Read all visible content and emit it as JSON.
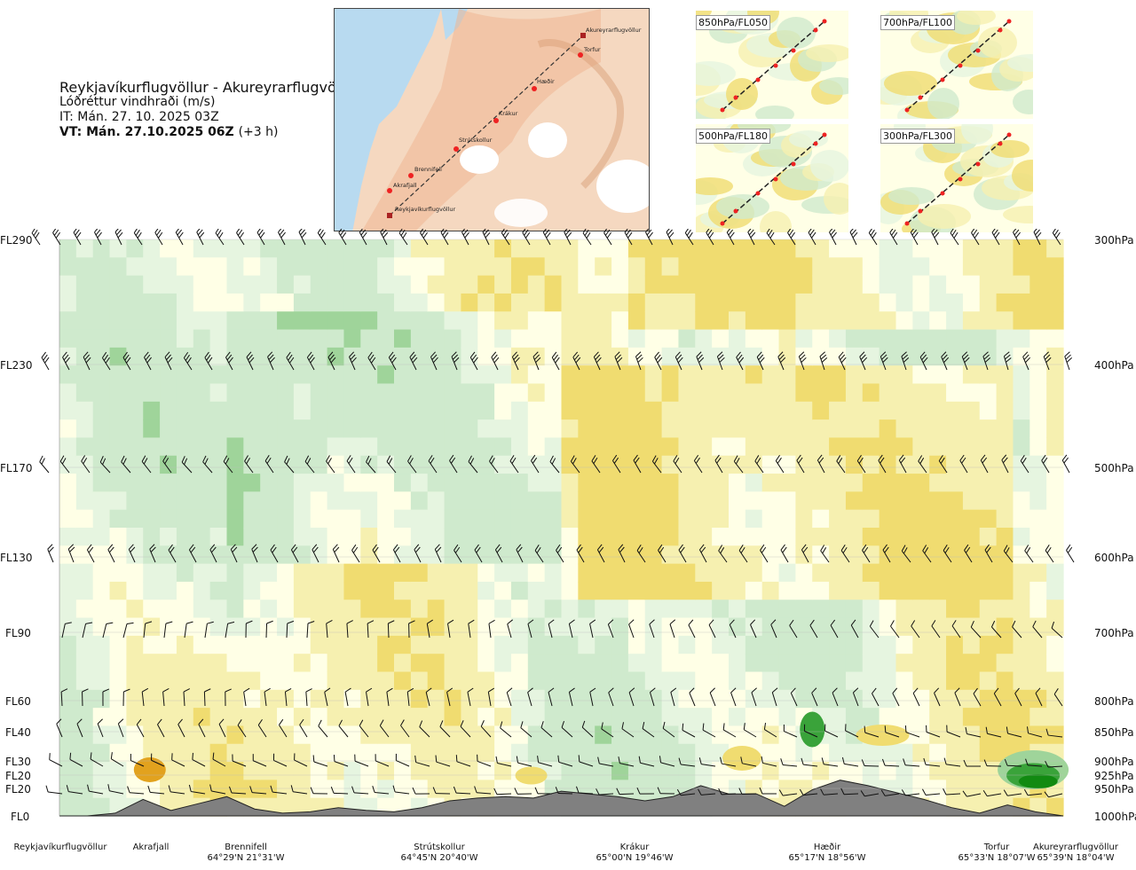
{
  "header": {
    "route": "Reykjavíkurflugvöllur - Akureyrarflugvöllur",
    "variable": "Lóðréttur vindhraði (m/s)",
    "issue_time": "IT: Mán. 27. 10. 2025 03Z",
    "valid_time": "VT: Mán. 27.10.2025 06Z",
    "lead": "(+3 h)"
  },
  "route_map": {
    "waypoints": [
      "Reykjavíkurflugvöllur",
      "Akrafjall",
      "Brennifell",
      "Strútskollur",
      "Krákur",
      "Hæðir",
      "Torfur",
      "Akureyrarflugvöllur"
    ]
  },
  "level_maps": [
    "850hPa/FL050",
    "700hPa/FL100",
    "500hPa/FL180",
    "300hPa/FL300"
  ],
  "levels_left": [
    "FL290",
    "FL230",
    "FL170",
    "FL130",
    "FL90",
    "FL60",
    "FL40",
    "FL30",
    "FL20",
    "FL20",
    "FL0"
  ],
  "levels_right": [
    "300hPa",
    "400hPa",
    "500hPa",
    "600hPa",
    "700hPa",
    "800hPa",
    "850hPa",
    "900hPa",
    "925hPa",
    "950hPa",
    "1000hPa"
  ],
  "bottom_labels": [
    {
      "name": "Reykjavíkurflugvöllur",
      "coord": ""
    },
    {
      "name": "Akrafjall",
      "coord": ""
    },
    {
      "name": "Brennifell",
      "coord": "64°29'N 21°31'W"
    },
    {
      "name": "Strútskollur",
      "coord": "64°45'N 20°40'W"
    },
    {
      "name": "Krákur",
      "coord": "65°00'N 19°46'W"
    },
    {
      "name": "Hæðir",
      "coord": "65°17'N 18°56'W"
    },
    {
      "name": "Torfur",
      "coord": "65°33'N 18°07'W"
    },
    {
      "name": "Akureyrarflugvöllur",
      "coord": "65°39'N 18°04'W"
    }
  ],
  "colors": {
    "sink_strong": "#e2a21e",
    "sink": "#f0dc70",
    "sink_weak": "#f6f0b0",
    "near_zero": "#ffffe6",
    "rise_weak": "#e6f5e0",
    "rise": "#cfeacd",
    "rise_mid": "#9fd49a",
    "rise_strong": "#3aa33a",
    "rise_max": "#118a11",
    "terrain": "#808080",
    "sea": "#b6d9ef",
    "land": "#f3c9a8"
  },
  "chart_data": {
    "type": "heatmap",
    "title": "Reykjavíkurflugvöllur - Akureyrarflugvöllur",
    "subtitle": "Lóðréttur vindhraði (m/s)",
    "y_levels_hPa": [
      1000,
      950,
      925,
      900,
      850,
      800,
      700,
      600,
      500,
      400,
      300
    ],
    "y_levels_FL": [
      0,
      20,
      20,
      30,
      40,
      60,
      90,
      130,
      170,
      230,
      290
    ],
    "x_waypoints": [
      "Reykjavíkurflugvöllur",
      "Akrafjall",
      "Brennifell",
      "Strútskollur",
      "Krákur",
      "Hæðir",
      "Torfur",
      "Akureyrarflugvöllur"
    ],
    "terrain_FL_along_route": [
      0,
      0,
      2,
      12,
      4,
      9,
      14,
      5,
      2,
      3,
      6,
      4,
      3,
      6,
      11,
      13,
      14,
      13,
      18,
      16,
      14,
      11,
      14,
      21,
      16,
      16,
      7,
      19,
      23,
      21,
      17,
      12,
      6,
      2,
      8,
      3,
      0
    ],
    "notes_levels_with_wind_barbs": [
      "FL290",
      "FL230",
      "FL170",
      "FL130",
      "FL90",
      "FL60",
      "FL40",
      "FL30",
      "FL20"
    ]
  }
}
